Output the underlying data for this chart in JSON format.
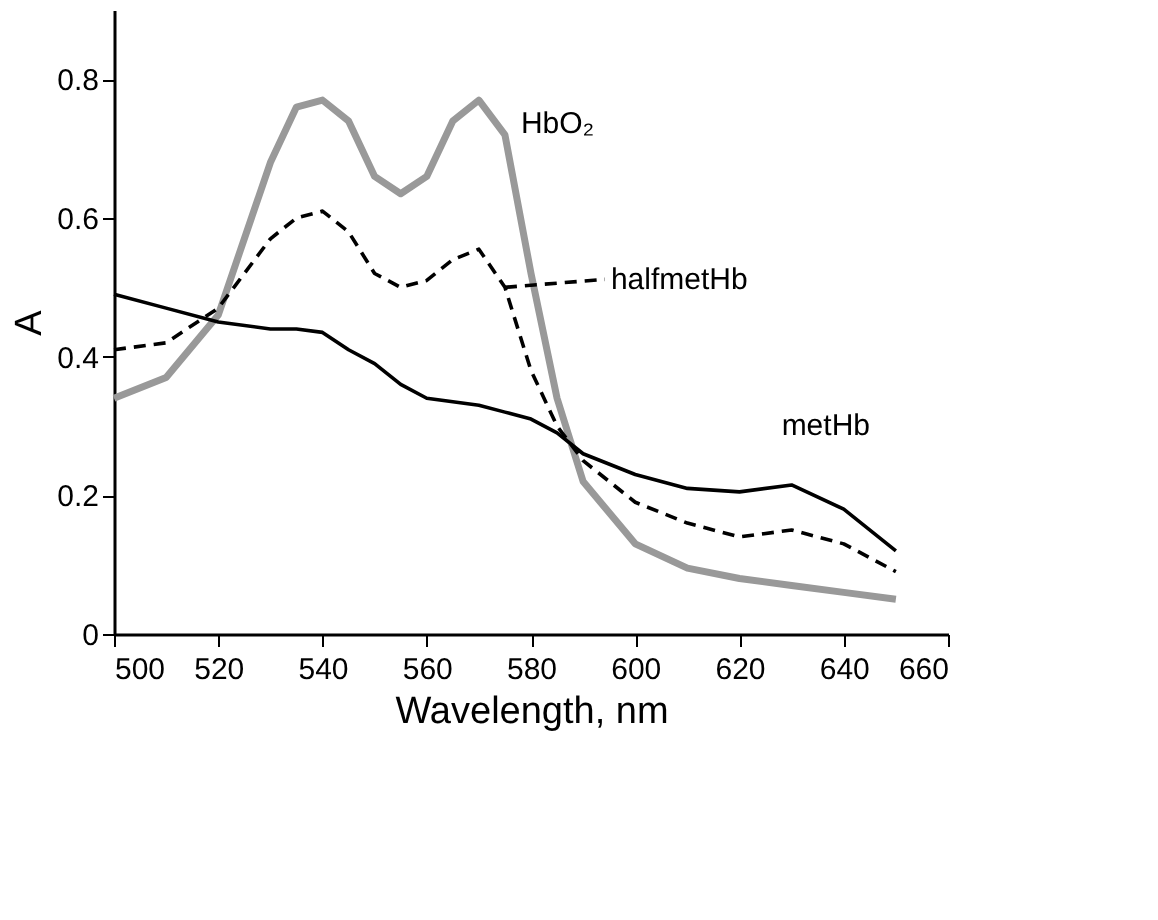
{
  "chart_data": {
    "type": "line",
    "xlabel": "Wavelength, nm",
    "ylabel": "A",
    "xlim": [
      500,
      660
    ],
    "xticks": [
      500,
      520,
      540,
      560,
      580,
      600,
      620,
      640,
      660
    ],
    "ylim": [
      0,
      0.9
    ],
    "yticks": [
      0,
      0.2,
      0.4,
      0.6,
      0.8
    ],
    "grid": false,
    "x": [
      500,
      510,
      520,
      530,
      535,
      540,
      545,
      550,
      555,
      560,
      565,
      570,
      575,
      580,
      585,
      590,
      600,
      610,
      620,
      630,
      640,
      650
    ],
    "series": [
      {
        "name": "HbO₂",
        "color": "#999999",
        "line_style": "solid",
        "values": [
          0.34,
          0.37,
          0.46,
          0.68,
          0.76,
          0.77,
          0.74,
          0.66,
          0.635,
          0.66,
          0.74,
          0.77,
          0.72,
          0.52,
          0.34,
          0.22,
          0.13,
          0.095,
          0.08,
          0.07,
          0.06,
          0.05
        ]
      },
      {
        "name": "halfmetHb",
        "color": "#000000",
        "line_style": "dashed",
        "values": [
          0.41,
          0.42,
          0.47,
          0.57,
          0.6,
          0.61,
          0.58,
          0.52,
          0.5,
          0.51,
          0.54,
          0.555,
          0.5,
          0.38,
          0.3,
          0.25,
          0.19,
          0.16,
          0.14,
          0.15,
          0.13,
          0.09
        ]
      },
      {
        "name": "metHb",
        "color": "#000000",
        "line_style": "solid",
        "values": [
          0.49,
          0.47,
          0.45,
          0.44,
          0.44,
          0.435,
          0.41,
          0.39,
          0.36,
          0.34,
          0.335,
          0.33,
          0.32,
          0.31,
          0.29,
          0.26,
          0.23,
          0.21,
          0.205,
          0.215,
          0.18,
          0.12
        ]
      }
    ]
  }
}
